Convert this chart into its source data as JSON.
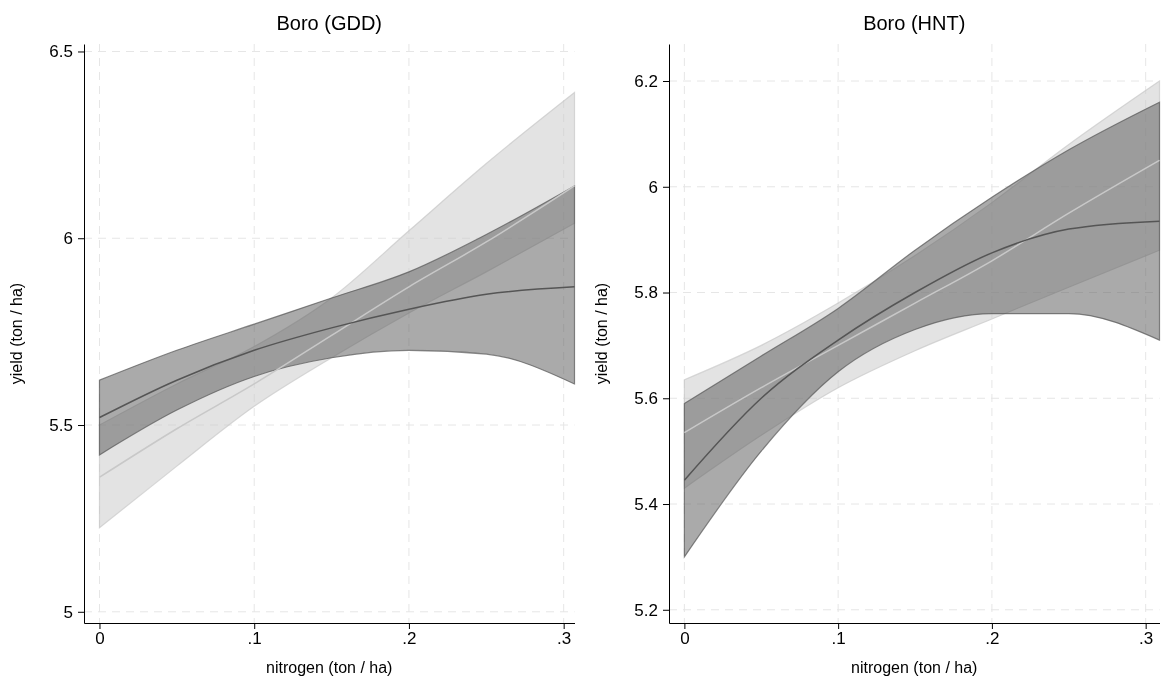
{
  "chart_data": [
    {
      "type": "line",
      "title": "Boro (GDD)",
      "xlabel": "nitrogen (ton / ha)",
      "ylabel": "yield (ton / ha)",
      "xlim": [
        -0.01,
        0.307
      ],
      "ylim": [
        4.97,
        6.52
      ],
      "xticks": [
        {
          "value": 0,
          "label": "0"
        },
        {
          "value": 0.1,
          "label": ".1"
        },
        {
          "value": 0.2,
          "label": ".2"
        },
        {
          "value": 0.3,
          "label": ".3"
        }
      ],
      "yticks": [
        5,
        5.5,
        6,
        6.5
      ],
      "grid": true,
      "x": [
        0,
        0.05,
        0.1,
        0.15,
        0.2,
        0.25,
        0.307
      ],
      "series": [
        {
          "color": "#c8c8c8",
          "values": [
            5.36,
            5.49,
            5.61,
            5.74,
            5.87,
            5.99,
            6.14
          ],
          "lower": [
            5.225,
            5.39,
            5.55,
            5.68,
            5.8,
            5.91,
            6.04
          ],
          "upper": [
            5.5,
            5.61,
            5.71,
            5.84,
            6.02,
            6.2,
            6.39
          ]
        },
        {
          "color": "#555555",
          "values": [
            5.52,
            5.62,
            5.7,
            5.76,
            5.81,
            5.85,
            5.87
          ],
          "lower": [
            5.42,
            5.54,
            5.63,
            5.68,
            5.7,
            5.69,
            5.61
          ],
          "upper": [
            5.62,
            5.7,
            5.77,
            5.84,
            5.91,
            6.01,
            6.14
          ]
        }
      ]
    },
    {
      "type": "line",
      "title": "Boro (HNT)",
      "xlabel": "nitrogen (ton / ha)",
      "ylabel": "yield (ton / ha)",
      "xlim": [
        -0.01,
        0.309
      ],
      "ylim": [
        5.175,
        6.27
      ],
      "xticks": [
        {
          "value": 0,
          "label": "0"
        },
        {
          "value": 0.1,
          "label": ".1"
        },
        {
          "value": 0.2,
          "label": ".2"
        },
        {
          "value": 0.3,
          "label": ".3"
        }
      ],
      "yticks": [
        5.2,
        5.4,
        5.6,
        5.8,
        6,
        6.2
      ],
      "grid": true,
      "x": [
        0,
        0.05,
        0.1,
        0.15,
        0.2,
        0.25,
        0.309
      ],
      "series": [
        {
          "color": "#c8c8c8",
          "values": [
            5.535,
            5.62,
            5.7,
            5.78,
            5.86,
            5.95,
            6.05
          ],
          "lower": [
            5.43,
            5.53,
            5.62,
            5.69,
            5.75,
            5.81,
            5.88
          ],
          "upper": [
            5.635,
            5.7,
            5.78,
            5.87,
            5.97,
            6.08,
            6.2
          ]
        },
        {
          "color": "#555555",
          "values": [
            5.445,
            5.6,
            5.71,
            5.8,
            5.875,
            5.92,
            5.935
          ],
          "lower": [
            5.3,
            5.5,
            5.65,
            5.73,
            5.76,
            5.76,
            5.71
          ],
          "upper": [
            5.59,
            5.68,
            5.77,
            5.88,
            5.98,
            6.07,
            6.16
          ]
        }
      ]
    }
  ]
}
